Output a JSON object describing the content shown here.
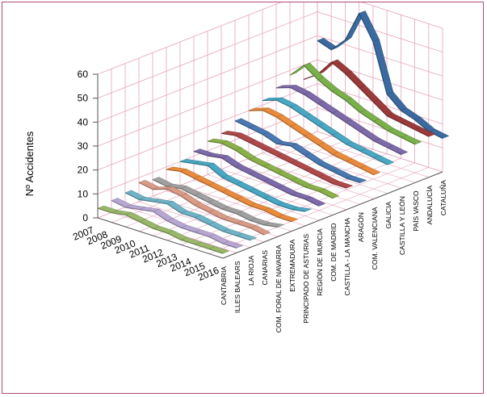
{
  "chart_data": {
    "type": "line",
    "chart_style": "3d-ribbon",
    "ylabel": "Nº Accidentes",
    "ylim": [
      0,
      60
    ],
    "yticks": [
      0,
      10,
      20,
      30,
      40,
      50,
      60
    ],
    "x": [
      "2007",
      "2008",
      "2009",
      "2010",
      "2011",
      "2012",
      "2013",
      "2014",
      "2015",
      "2016"
    ],
    "z_categories": [
      "CANTABRIA",
      "ILLES BALEARS",
      "LA RIOJA",
      "CANARIAS",
      "COM. FORAL DE NAVARRA",
      "EXTREMADURA",
      "PRINCIPADO DE ASTURIAS",
      "REGIÓN DE MURCIA",
      "COM. DE MADRID",
      "CASTILLA - LA MANCHA",
      "ARAGÓN",
      "COM. VALENCIANA",
      "GALICIA",
      "CASTILLA Y LEÓN",
      "PAÍS VASCO",
      "ANDALUCÍA",
      "CATALUÑA"
    ],
    "grid": true,
    "colors": {
      "frame": "#b04a7a",
      "grid": "#e5a3bd",
      "axis": "#555555"
    },
    "series": [
      {
        "values": [
          4,
          4,
          5,
          4,
          3,
          3,
          2,
          2,
          2,
          2
        ],
        "color": "#9ab86a"
      },
      {
        "values": [
          5,
          4,
          5,
          6,
          4,
          3,
          3,
          3,
          2,
          2
        ],
        "color": "#b7a6d2"
      },
      {
        "values": [
          6,
          5,
          6,
          7,
          5,
          5,
          4,
          3,
          3,
          3
        ],
        "color": "#6fb3c7"
      },
      {
        "values": [
          8,
          7,
          9,
          8,
          6,
          5,
          4,
          4,
          4,
          3
        ],
        "color": "#d99a86"
      },
      {
        "values": [
          7,
          6,
          7,
          6,
          5,
          4,
          4,
          3,
          3,
          4
        ],
        "color": "#a0a0a0"
      },
      {
        "values": [
          9,
          10,
          9,
          8,
          7,
          6,
          5,
          5,
          4,
          4
        ],
        "color": "#e98a3c"
      },
      {
        "values": [
          10,
          11,
          12,
          9,
          8,
          7,
          6,
          5,
          5,
          6
        ],
        "color": "#4aa7c2"
      },
      {
        "values": [
          12,
          12,
          13,
          11,
          10,
          9,
          8,
          7,
          7,
          6
        ],
        "color": "#7d6aa8"
      },
      {
        "values": [
          14,
          15,
          14,
          12,
          11,
          10,
          9,
          8,
          8,
          7
        ],
        "color": "#8ab04a"
      },
      {
        "values": [
          15,
          16,
          15,
          14,
          13,
          12,
          11,
          10,
          9,
          9
        ],
        "color": "#b04a4a"
      },
      {
        "values": [
          18,
          17,
          16,
          14,
          15,
          13,
          11,
          10,
          9,
          9
        ],
        "color": "#4a78b0"
      },
      {
        "values": [
          20,
          22,
          21,
          19,
          17,
          15,
          13,
          12,
          11,
          10
        ],
        "color": "#e98a3c"
      },
      {
        "values": [
          22,
          24,
          23,
          21,
          19,
          17,
          15,
          14,
          13,
          12
        ],
        "color": "#4aa7c2"
      },
      {
        "values": [
          25,
          27,
          26,
          24,
          22,
          20,
          18,
          16,
          15,
          14
        ],
        "color": "#7d6aa8"
      },
      {
        "values": [
          28,
          34,
          30,
          27,
          25,
          22,
          20,
          18,
          17,
          16
        ],
        "color": "#7ab04a"
      },
      {
        "values": [
          24,
          28,
          35,
          32,
          28,
          24,
          20,
          19,
          18,
          17
        ],
        "color": "#9a3a3a"
      },
      {
        "values": [
          38,
          36,
          42,
          55,
          45,
          25,
          20,
          18,
          15,
          14
        ],
        "color": "#3a6aa0"
      }
    ]
  }
}
